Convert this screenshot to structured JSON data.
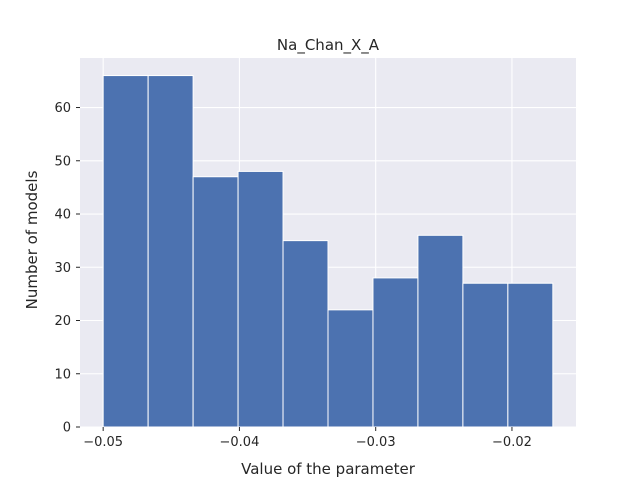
{
  "chart_data": {
    "type": "bar",
    "title": "Na_Chan_X_A",
    "xlabel": "Value of the parameter",
    "ylabel": "Number of models",
    "bin_edges": [
      -0.05,
      -0.0467,
      -0.0434,
      -0.0401,
      -0.0368,
      -0.0335,
      -0.0302,
      -0.0269,
      -0.0236,
      -0.0203,
      -0.017
    ],
    "values": [
      66,
      66,
      47,
      48,
      35,
      22,
      28,
      36,
      27,
      27
    ],
    "xlim": [
      -0.0517,
      -0.0153
    ],
    "ylim": [
      0,
      69.3
    ],
    "x_ticks": [
      -0.05,
      -0.04,
      -0.03,
      -0.02
    ],
    "x_tick_labels": [
      "−0.05",
      "−0.04",
      "−0.03",
      "−0.02"
    ],
    "y_ticks": [
      0,
      10,
      20,
      30,
      40,
      50,
      60
    ],
    "y_tick_labels": [
      "0",
      "10",
      "20",
      "30",
      "40",
      "50",
      "60"
    ],
    "grid": true,
    "bar_color": "#4c72b0",
    "background_color": "#eaeaf2",
    "grid_color": "#ffffff"
  }
}
